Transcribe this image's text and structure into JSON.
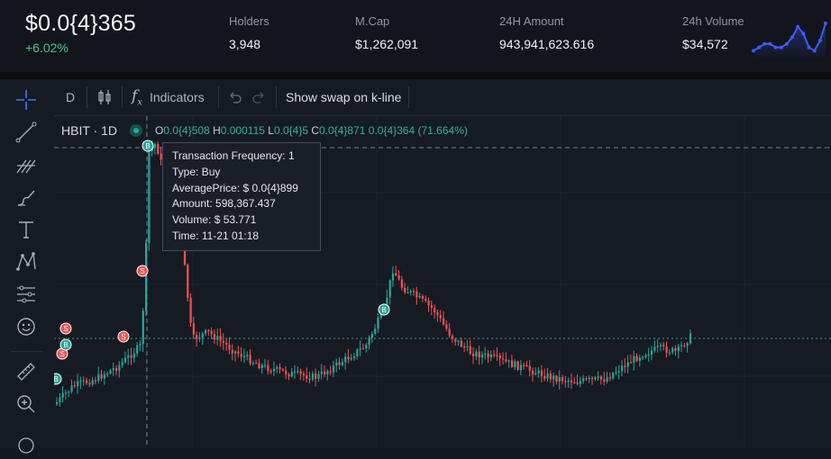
{
  "header": {
    "price": "$0.0{4}365",
    "change": "+6.02%",
    "stats": [
      {
        "label": "Holders",
        "value": "3,948"
      },
      {
        "label": "M.Cap",
        "value": "$1,262,091"
      },
      {
        "label": "24H Amount",
        "value": "943,941,623.616"
      },
      {
        "label": "24h Volume",
        "value": "$34,572"
      }
    ]
  },
  "colors": {
    "up": "#26a69a",
    "down": "#ef5350",
    "accent": "#2962ff",
    "buy_marker": "#26a69a",
    "sell_marker": "#ef5350",
    "sparkline": "#3d5afe"
  },
  "sparkline": [
    2,
    3,
    4,
    4,
    3,
    3,
    4,
    6,
    9,
    7,
    3,
    2,
    5,
    10
  ],
  "left_toolbar": [
    {
      "icon": "crosshair-icon"
    },
    {
      "icon": "trend-line-icon"
    },
    {
      "icon": "fib-retracement-icon"
    },
    {
      "icon": "brush-icon"
    },
    {
      "icon": "text-icon"
    },
    {
      "icon": "pattern-icon"
    },
    {
      "icon": "measure-settings-icon"
    },
    {
      "icon": "emoji-icon"
    },
    {
      "icon": "ruler-icon"
    },
    {
      "icon": "zoom-in-icon"
    }
  ],
  "top_toolbar": {
    "interval": "D",
    "chart_type_icon": "candles-icon",
    "indicators_label": "Indicators",
    "swap_label": "Show swap on k-line"
  },
  "legend": {
    "symbol": "HBIT · 1D",
    "o_label": "O",
    "o_value": "0.0{4}508",
    "h_label": "H",
    "h_value": "0.000115",
    "l_label": "L",
    "l_value": "0.0{4}5",
    "c_label": "C",
    "c_value": "0.0{4}871",
    "change": "0.0{4}364 (71.664%)"
  },
  "tooltip": {
    "rows": [
      "Transaction Frequency:  1",
      "Type:  Buy",
      "AveragePrice:  $ 0.0{4}899",
      "Amount:  598,367.437",
      "Volume:  $ 53.771",
      "Time:  11-21 01:18"
    ]
  },
  "chart_data": {
    "type": "candlestick",
    "series": [
      {
        "open": 335,
        "close": 322,
        "high": 343,
        "low": 316,
        "trend": "up"
      },
      {
        "open": 322,
        "close": 318,
        "high": 330,
        "low": 312
      },
      {
        "open": 318,
        "close": 300,
        "high": 320,
        "low": 295
      },
      {
        "open": 300,
        "close": 290,
        "high": 305,
        "low": 283
      },
      {
        "open": 290,
        "close": 270,
        "high": 294,
        "low": 262
      },
      {
        "open": 270,
        "close": 285,
        "high": 292,
        "low": 265
      },
      {
        "open": 285,
        "close": 272,
        "high": 288,
        "low": 260
      },
      {
        "open": 272,
        "close": 250,
        "high": 276,
        "low": 244
      },
      {
        "open": 250,
        "close": 278,
        "high": 283,
        "low": 246
      },
      {
        "open": 278,
        "close": 294,
        "high": 300,
        "low": 275
      },
      {
        "open": 294,
        "close": 280,
        "high": 297,
        "low": 270
      },
      {
        "open": 280,
        "close": 275,
        "high": 284,
        "low": 268
      },
      {
        "open": 275,
        "close": 255,
        "high": 279,
        "low": 248
      },
      {
        "open": 255,
        "close": 262,
        "high": 266,
        "low": 250
      },
      {
        "open": 262,
        "close": 278,
        "high": 286,
        "low": 258
      },
      {
        "open": 278,
        "close": 292,
        "high": 299,
        "low": 274
      },
      {
        "open": 292,
        "close": 310,
        "high": 314,
        "low": 288
      },
      {
        "open": 310,
        "close": 300,
        "high": 318,
        "low": 293
      },
      {
        "open": 300,
        "close": 282,
        "high": 304,
        "low": 275
      },
      {
        "open": 282,
        "close": 270,
        "high": 287,
        "low": 262
      },
      {
        "open": 270,
        "close": 258,
        "high": 274,
        "low": 252
      },
      {
        "open": 258,
        "close": 276,
        "high": 280,
        "low": 254
      },
      {
        "open": 276,
        "close": 290,
        "high": 296,
        "low": 272
      },
      {
        "open": 290,
        "close": 306,
        "high": 309,
        "low": 286
      },
      {
        "open": 306,
        "close": 300,
        "high": 311,
        "low": 296
      },
      {
        "open": 300,
        "close": 275,
        "high": 304,
        "low": 268
      },
      {
        "open": 275,
        "close": 262,
        "high": 280,
        "low": 256
      },
      {
        "open": 262,
        "close": 270,
        "high": 275,
        "low": 258
      },
      {
        "open": 270,
        "close": 255,
        "high": 273,
        "low": 248
      },
      {
        "open": 255,
        "close": 265,
        "high": 268,
        "low": 250
      },
      {
        "open": 265,
        "close": 280,
        "high": 284,
        "low": 262
      },
      {
        "open": 280,
        "close": 276,
        "high": 282,
        "low": 272
      },
      {
        "open": 276,
        "close": 265,
        "high": 280,
        "low": 260
      },
      {
        "open": 265,
        "close": 258,
        "high": 268,
        "low": 252
      },
      {
        "open": 258,
        "close": 266,
        "high": 270,
        "low": 254
      },
      {
        "open": 266,
        "close": 248,
        "high": 270,
        "low": 242
      },
      {
        "open": 248,
        "close": 258,
        "high": 262,
        "low": 244
      },
      {
        "open": 258,
        "close": 262,
        "high": 266,
        "low": 252
      },
      {
        "open": 262,
        "close": 252,
        "high": 266,
        "low": 246
      },
      {
        "open": 252,
        "close": 250,
        "high": 255,
        "low": 245
      },
      {
        "open": 250,
        "close": 258,
        "high": 262,
        "low": 247
      },
      {
        "open": 258,
        "close": 280,
        "high": 285,
        "low": 255
      },
      {
        "open": 280,
        "close": 268,
        "high": 284,
        "low": 262
      },
      {
        "open": 268,
        "close": 250,
        "high": 272,
        "low": 246
      },
      {
        "open": 250,
        "close": 258,
        "high": 261,
        "low": 246
      },
      {
        "open": 258,
        "close": 265,
        "high": 270,
        "low": 254
      },
      {
        "open": 265,
        "close": 256,
        "high": 268,
        "low": 250
      },
      {
        "open": 256,
        "close": 262,
        "high": 266,
        "low": 252
      },
      {
        "open": 262,
        "close": 258,
        "high": 264,
        "low": 254
      },
      {
        "open": 258,
        "close": 262,
        "high": 265,
        "low": 255
      }
    ]
  }
}
